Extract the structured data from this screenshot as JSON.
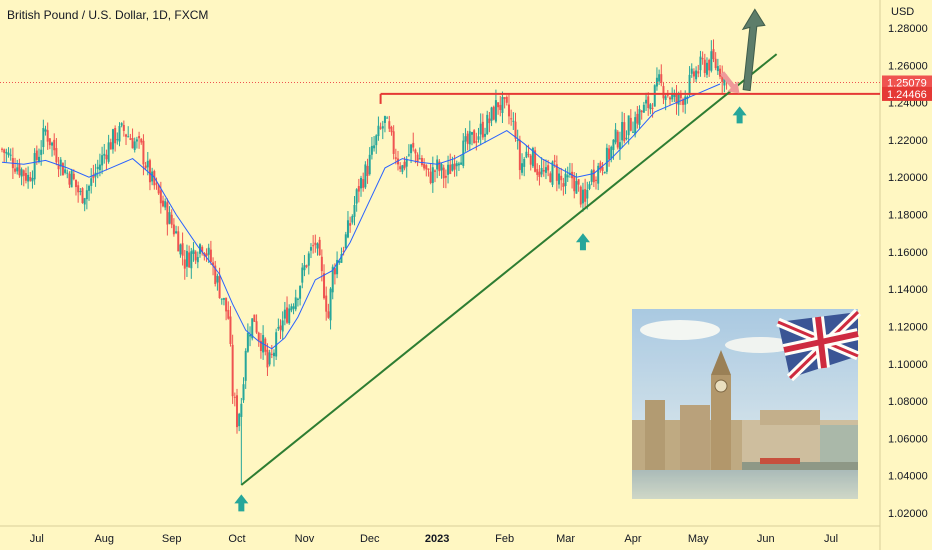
{
  "header": {
    "title": "British Pound / U.S. Dollar, 1D, FXCM",
    "currency": "USD"
  },
  "colors": {
    "background": "#fff7c2",
    "up": "#26a69a",
    "down": "#ef5350",
    "ma": "#2962ff",
    "trendline": "#2e7d32",
    "resistance": "#e53935",
    "arrow_up": "#26a69a",
    "arrow_target": "#ef9a9a",
    "arrow_long": "#5d7d6a"
  },
  "chart_data": {
    "type": "candlestick",
    "title": "British Pound / U.S. Dollar, 1D, FXCM",
    "ylabel": "USD",
    "ylim": [
      1.01,
      1.3
    ],
    "y_ticks": [
      "1.02000",
      "1.04000",
      "1.06000",
      "1.08000",
      "1.10000",
      "1.12000",
      "1.14000",
      "1.16000",
      "1.18000",
      "1.20000",
      "1.22000",
      "1.24000",
      "1.26000",
      "1.28000"
    ],
    "x_ticks": [
      {
        "label": "Jul",
        "day": 16,
        "bold": false
      },
      {
        "label": "Aug",
        "day": 47,
        "bold": false
      },
      {
        "label": "Sep",
        "day": 78,
        "bold": false
      },
      {
        "label": "Oct",
        "day": 108,
        "bold": false
      },
      {
        "label": "Nov",
        "day": 139,
        "bold": false
      },
      {
        "label": "Dec",
        "day": 169,
        "bold": false
      },
      {
        "label": "2023",
        "day": 200,
        "bold": true
      },
      {
        "label": "Feb",
        "day": 231,
        "bold": false
      },
      {
        "label": "Mar",
        "day": 259,
        "bold": false
      },
      {
        "label": "Apr",
        "day": 290,
        "bold": false
      },
      {
        "label": "May",
        "day": 320,
        "bold": false
      },
      {
        "label": "Jun",
        "day": 351,
        "bold": false
      },
      {
        "label": "Jul",
        "day": 381,
        "bold": false
      }
    ],
    "close_path": [
      [
        0,
        1.215
      ],
      [
        4,
        1.21
      ],
      [
        8,
        1.205
      ],
      [
        12,
        1.2
      ],
      [
        16,
        1.21
      ],
      [
        20,
        1.225
      ],
      [
        24,
        1.215
      ],
      [
        28,
        1.205
      ],
      [
        32,
        1.2
      ],
      [
        36,
        1.19
      ],
      [
        40,
        1.195
      ],
      [
        44,
        1.205
      ],
      [
        48,
        1.215
      ],
      [
        52,
        1.222
      ],
      [
        56,
        1.225
      ],
      [
        60,
        1.22
      ],
      [
        64,
        1.215
      ],
      [
        68,
        1.2
      ],
      [
        72,
        1.19
      ],
      [
        76,
        1.18
      ],
      [
        80,
        1.17
      ],
      [
        84,
        1.155
      ],
      [
        88,
        1.16
      ],
      [
        92,
        1.165
      ],
      [
        96,
        1.155
      ],
      [
        100,
        1.14
      ],
      [
        104,
        1.125
      ],
      [
        106,
        1.085
      ],
      [
        108,
        1.07
      ],
      [
        110,
        1.08
      ],
      [
        112,
        1.11
      ],
      [
        114,
        1.12
      ],
      [
        116,
        1.125
      ],
      [
        118,
        1.115
      ],
      [
        120,
        1.11
      ],
      [
        122,
        1.098
      ],
      [
        124,
        1.103
      ],
      [
        128,
        1.12
      ],
      [
        132,
        1.13
      ],
      [
        136,
        1.14
      ],
      [
        140,
        1.155
      ],
      [
        144,
        1.165
      ],
      [
        148,
        1.14
      ],
      [
        150,
        1.125
      ],
      [
        152,
        1.15
      ],
      [
        156,
        1.16
      ],
      [
        160,
        1.175
      ],
      [
        164,
        1.195
      ],
      [
        168,
        1.205
      ],
      [
        172,
        1.22
      ],
      [
        176,
        1.23
      ],
      [
        180,
        1.215
      ],
      [
        184,
        1.205
      ],
      [
        188,
        1.215
      ],
      [
        192,
        1.21
      ],
      [
        196,
        1.2
      ],
      [
        200,
        1.205
      ],
      [
        204,
        1.2
      ],
      [
        208,
        1.21
      ],
      [
        212,
        1.215
      ],
      [
        216,
        1.22
      ],
      [
        220,
        1.225
      ],
      [
        224,
        1.23
      ],
      [
        228,
        1.24
      ],
      [
        232,
        1.235
      ],
      [
        236,
        1.225
      ],
      [
        238,
        1.205
      ],
      [
        242,
        1.215
      ],
      [
        246,
        1.205
      ],
      [
        250,
        1.2
      ],
      [
        254,
        1.205
      ],
      [
        258,
        1.195
      ],
      [
        262,
        1.2
      ],
      [
        266,
        1.19
      ],
      [
        268,
        1.185
      ],
      [
        270,
        1.2
      ],
      [
        274,
        1.205
      ],
      [
        278,
        1.21
      ],
      [
        282,
        1.22
      ],
      [
        286,
        1.225
      ],
      [
        290,
        1.23
      ],
      [
        294,
        1.235
      ],
      [
        298,
        1.24
      ],
      [
        302,
        1.25
      ],
      [
        306,
        1.245
      ],
      [
        310,
        1.24
      ],
      [
        314,
        1.245
      ],
      [
        318,
        1.255
      ],
      [
        322,
        1.26
      ],
      [
        326,
        1.262
      ],
      [
        330,
        1.258
      ],
      [
        333,
        1.2508
      ]
    ],
    "ma_path": [
      [
        0,
        1.208
      ],
      [
        10,
        1.207
      ],
      [
        20,
        1.209
      ],
      [
        30,
        1.205
      ],
      [
        40,
        1.2
      ],
      [
        50,
        1.205
      ],
      [
        60,
        1.21
      ],
      [
        70,
        1.2
      ],
      [
        80,
        1.18
      ],
      [
        90,
        1.163
      ],
      [
        100,
        1.148
      ],
      [
        106,
        1.132
      ],
      [
        112,
        1.118
      ],
      [
        118,
        1.112
      ],
      [
        124,
        1.108
      ],
      [
        130,
        1.114
      ],
      [
        136,
        1.125
      ],
      [
        144,
        1.145
      ],
      [
        152,
        1.15
      ],
      [
        160,
        1.165
      ],
      [
        168,
        1.185
      ],
      [
        176,
        1.205
      ],
      [
        184,
        1.21
      ],
      [
        192,
        1.208
      ],
      [
        200,
        1.207
      ],
      [
        208,
        1.21
      ],
      [
        216,
        1.215
      ],
      [
        224,
        1.22
      ],
      [
        232,
        1.225
      ],
      [
        240,
        1.218
      ],
      [
        248,
        1.21
      ],
      [
        256,
        1.205
      ],
      [
        264,
        1.2
      ],
      [
        272,
        1.202
      ],
      [
        280,
        1.21
      ],
      [
        290,
        1.222
      ],
      [
        300,
        1.235
      ],
      [
        310,
        1.24
      ],
      [
        320,
        1.245
      ],
      [
        330,
        1.25
      ]
    ],
    "candle_count": 334,
    "low_point": {
      "day": 110,
      "price": 1.035
    },
    "resistance": {
      "price": 1.24466,
      "from_day": 174
    },
    "last_price": 1.25079,
    "trendline": {
      "from": [
        110,
        1.035
      ],
      "to": [
        356,
        1.266
      ]
    },
    "price_labels": [
      {
        "value": "1.25079",
        "price": 1.25079,
        "color": "#ef5350"
      },
      {
        "value": "1.24466",
        "price": 1.24466,
        "color": "#e53935"
      }
    ],
    "up_arrows": [
      {
        "day": 110,
        "price": 1.03
      },
      {
        "day": 267,
        "price": 1.17
      },
      {
        "day": 339,
        "price": 1.238
      }
    ],
    "target_arrow": {
      "from": [
        331,
        1.256
      ],
      "to": [
        338,
        1.246
      ]
    },
    "bull_arrow": {
      "from": [
        342,
        1.247
      ],
      "to": [
        346,
        1.29
      ]
    },
    "grid": false,
    "legend": "none"
  },
  "inset_image": {
    "name": "london-parliament-union-jack-photo"
  }
}
